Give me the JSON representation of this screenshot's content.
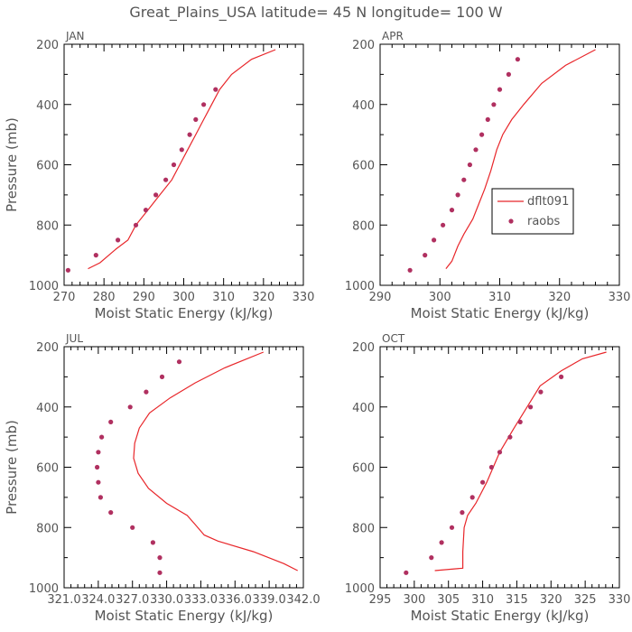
{
  "title": "Great_Plains_USA   latitude= 45 N longitude= 100 W",
  "colors": {
    "model": "#e8262a",
    "obs": "#b03060",
    "text": "#555555",
    "axes": "#000000"
  },
  "legend": {
    "panel": 1,
    "entries": [
      "dflt091",
      "raobs"
    ]
  },
  "chart_data": [
    {
      "type": "line",
      "panel_label": "JAN",
      "xlabel": "Moist Static Energy (kJ/kg)",
      "ylabel": "Pressure (mb)",
      "xlim": [
        270,
        330
      ],
      "ylim": [
        1000,
        200
      ],
      "xticks": [
        270,
        280,
        290,
        300,
        310,
        320,
        330
      ],
      "xtick_labels": [
        "270",
        "280",
        "290",
        "300",
        "310",
        "320",
        "330"
      ],
      "yticks": [
        200,
        400,
        600,
        800,
        1000
      ],
      "series": [
        {
          "name": "dflt091",
          "kind": "line",
          "x": [
            276,
            279,
            283,
            286,
            288,
            291,
            294,
            297,
            299,
            301,
            303,
            305,
            307,
            309,
            312,
            317,
            323
          ],
          "y": [
            945,
            925,
            880,
            850,
            800,
            750,
            700,
            650,
            600,
            550,
            500,
            450,
            400,
            350,
            300,
            250,
            218
          ]
        },
        {
          "name": "raobs",
          "kind": "scatter",
          "x": [
            271,
            278,
            283.5,
            288,
            290.5,
            293,
            295.5,
            297.5,
            299.5,
            301.5,
            303,
            305,
            308
          ],
          "y": [
            950,
            900,
            850,
            800,
            750,
            700,
            650,
            600,
            550,
            500,
            450,
            400,
            350
          ]
        }
      ]
    },
    {
      "type": "line",
      "panel_label": "APR",
      "xlabel": "Moist Static Energy (kJ/kg)",
      "ylabel": "",
      "xlim": [
        290,
        330
      ],
      "ylim": [
        1000,
        200
      ],
      "xticks": [
        290,
        300,
        310,
        320,
        330
      ],
      "xtick_labels": [
        "290",
        "300",
        "310",
        "320",
        "330"
      ],
      "yticks": [
        200,
        400,
        600,
        800,
        1000
      ],
      "series": [
        {
          "name": "dflt091",
          "kind": "line",
          "x": [
            301,
            302,
            303,
            304,
            305.5,
            306.5,
            307.5,
            308.5,
            309.5,
            310.5,
            312,
            314,
            317,
            321,
            326
          ],
          "y": [
            945,
            920,
            870,
            830,
            780,
            730,
            680,
            620,
            550,
            500,
            450,
            400,
            330,
            270,
            218
          ]
        },
        {
          "name": "raobs",
          "kind": "scatter",
          "x": [
            295,
            297.5,
            299,
            300.5,
            302,
            303,
            304,
            305,
            306,
            307,
            308,
            309,
            310,
            311.5,
            313
          ],
          "y": [
            950,
            900,
            850,
            800,
            750,
            700,
            650,
            600,
            550,
            500,
            450,
            400,
            350,
            300,
            250
          ]
        }
      ]
    },
    {
      "type": "line",
      "panel_label": "JUL",
      "xlabel": "Moist Static Energy (kJ/kg)",
      "ylabel": "Pressure (mb)",
      "xlim": [
        321.0,
        342.0
      ],
      "ylim": [
        1000,
        200
      ],
      "xticks": [
        321.0,
        324.0,
        327.0,
        330.0,
        333.0,
        336.0,
        339.0,
        342.0
      ],
      "xtick_labels": [
        "321.0",
        "324.0",
        "327.0",
        "330.0",
        "333.0",
        "336.0",
        "339.0",
        "342.0"
      ],
      "yticks": [
        200,
        400,
        600,
        800,
        1000
      ],
      "series": [
        {
          "name": "dflt091",
          "kind": "line",
          "x": [
            341.5,
            340.3,
            337.6,
            334.5,
            333.3,
            332.5,
            331.8,
            330.0,
            328.4,
            327.5,
            327.1,
            327.2,
            327.6,
            328.5,
            330.3,
            332.5,
            335.1,
            338.5
          ],
          "y": [
            943,
            920,
            880,
            845,
            825,
            790,
            760,
            720,
            670,
            620,
            570,
            520,
            470,
            420,
            370,
            320,
            270,
            218
          ]
        },
        {
          "name": "raobs",
          "kind": "scatter",
          "x": [
            329.4,
            329.4,
            328.8,
            327.0,
            325.1,
            324.2,
            324.0,
            323.9,
            324.0,
            324.3,
            325.1,
            326.8,
            328.2,
            329.6,
            331.1
          ],
          "y": [
            950,
            900,
            850,
            800,
            750,
            700,
            650,
            600,
            550,
            500,
            450,
            400,
            350,
            300,
            250
          ]
        }
      ]
    },
    {
      "type": "line",
      "panel_label": "OCT",
      "xlabel": "Moist Static Energy (kJ/kg)",
      "ylabel": "",
      "xlim": [
        295,
        330
      ],
      "ylim": [
        1000,
        200
      ],
      "xticks": [
        295,
        300,
        305,
        310,
        315,
        320,
        325,
        330
      ],
      "xtick_labels": [
        "295",
        "300",
        "305",
        "310",
        "315",
        "320",
        "325",
        "330"
      ],
      "yticks": [
        200,
        400,
        600,
        800,
        1000
      ],
      "series": [
        {
          "name": "dflt091",
          "kind": "line",
          "x": [
            303.0,
            307.1,
            307.1,
            307.3,
            307.8,
            309.0,
            310.6,
            312.5,
            314.6,
            316.5,
            318.4,
            321.5,
            324.6,
            328.1
          ],
          "y": [
            943,
            935,
            880,
            800,
            760,
            720,
            650,
            550,
            470,
            400,
            330,
            280,
            240,
            218
          ]
        },
        {
          "name": "raobs",
          "kind": "scatter",
          "x": [
            298.8,
            302.5,
            304.0,
            305.5,
            307.0,
            308.5,
            310.0,
            311.3,
            312.5,
            314.0,
            315.5,
            317.0,
            318.5,
            321.5
          ],
          "y": [
            950,
            900,
            850,
            800,
            750,
            700,
            650,
            600,
            550,
            500,
            450,
            400,
            350,
            300
          ]
        }
      ]
    }
  ]
}
